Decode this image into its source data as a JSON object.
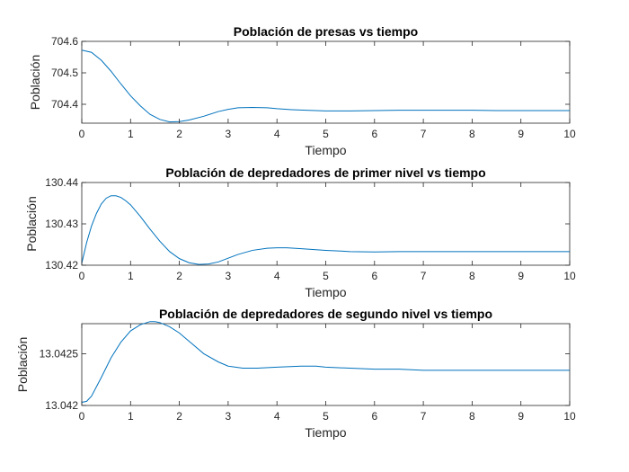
{
  "figure": {
    "background": "#ffffff",
    "line_color": "#0072BD",
    "axes_color": "#262626"
  },
  "chart_data": [
    {
      "type": "line",
      "title": "Población de presas vs tiempo",
      "xlabel": "Tiempo",
      "ylabel": "Población",
      "xlim": [
        0,
        10
      ],
      "ylim": [
        704.34,
        704.6
      ],
      "xticks": [
        "0",
        "1",
        "2",
        "3",
        "4",
        "5",
        "6",
        "7",
        "8",
        "9",
        "10"
      ],
      "yticks": [
        "704.4",
        "704.5",
        "704.6"
      ],
      "ytick_values": [
        704.4,
        704.5,
        704.6
      ],
      "grid": false,
      "series": [
        {
          "color": "#0072BD",
          "x": [
            0,
            0.2,
            0.4,
            0.6,
            0.8,
            1.0,
            1.2,
            1.4,
            1.6,
            1.8,
            2.0,
            2.2,
            2.5,
            2.8,
            3.0,
            3.2,
            3.5,
            3.8,
            4.0,
            4.3,
            4.6,
            5.0,
            5.5,
            6.0,
            6.5,
            7.0,
            7.5,
            8.0,
            8.5,
            9.0,
            9.5,
            10.0
          ],
          "y": [
            704.572,
            704.565,
            704.54,
            704.505,
            704.465,
            704.427,
            704.395,
            704.368,
            704.352,
            704.344,
            704.345,
            704.35,
            704.362,
            704.377,
            704.384,
            704.389,
            704.39,
            704.389,
            704.386,
            704.383,
            704.381,
            704.379,
            704.379,
            704.38,
            704.381,
            704.381,
            704.381,
            704.381,
            704.38,
            704.38,
            704.38,
            704.38
          ]
        }
      ]
    },
    {
      "type": "line",
      "title": "Población de depredadores de primer nivel vs tiempo",
      "xlabel": "Tiempo",
      "ylabel": "Población",
      "xlim": [
        0,
        10
      ],
      "ylim": [
        130.42,
        130.44
      ],
      "xticks": [
        "0",
        "1",
        "2",
        "3",
        "4",
        "5",
        "6",
        "7",
        "8",
        "9",
        "10"
      ],
      "yticks": [
        "130.42",
        "130.43",
        "130.44"
      ],
      "ytick_values": [
        130.42,
        130.43,
        130.44
      ],
      "grid": false,
      "series": [
        {
          "color": "#0072BD",
          "x": [
            0,
            0.1,
            0.2,
            0.3,
            0.4,
            0.5,
            0.6,
            0.7,
            0.8,
            0.9,
            1.0,
            1.2,
            1.4,
            1.6,
            1.8,
            2.0,
            2.2,
            2.4,
            2.6,
            2.8,
            3.0,
            3.2,
            3.5,
            3.8,
            4.0,
            4.2,
            4.5,
            5.0,
            5.5,
            6.0,
            6.5,
            7.0,
            8.0,
            9.0,
            10.0
          ],
          "y": [
            130.4205,
            130.4255,
            130.4295,
            130.4325,
            130.4348,
            130.4362,
            130.4368,
            130.4368,
            130.4364,
            130.4356,
            130.4346,
            130.4318,
            130.4287,
            130.4258,
            130.4233,
            130.4216,
            130.4206,
            130.4202,
            130.4203,
            130.4208,
            130.4217,
            130.4226,
            130.4236,
            130.4241,
            130.4242,
            130.4242,
            130.424,
            130.4236,
            130.4233,
            130.4232,
            130.4233,
            130.4233,
            130.4233,
            130.4233,
            130.4233
          ]
        }
      ]
    },
    {
      "type": "line",
      "title": "Población de depredadores de segundo nivel vs tiempo",
      "xlabel": "Tiempo",
      "ylabel": "Población",
      "xlim": [
        0,
        10
      ],
      "ylim": [
        13.042,
        13.04279
      ],
      "xticks": [
        "0",
        "1",
        "2",
        "3",
        "4",
        "5",
        "6",
        "7",
        "8",
        "9",
        "10"
      ],
      "yticks": [
        "13.042",
        "13.0425"
      ],
      "ytick_values": [
        13.042,
        13.0425
      ],
      "grid": false,
      "series": [
        {
          "color": "#0072BD",
          "x": [
            0,
            0.1,
            0.2,
            0.4,
            0.6,
            0.8,
            1.0,
            1.2,
            1.4,
            1.5,
            1.6,
            1.8,
            2.0,
            2.2,
            2.5,
            2.8,
            3.0,
            3.3,
            3.6,
            4.0,
            4.5,
            4.8,
            5.0,
            5.5,
            6.0,
            6.5,
            7.0,
            7.5,
            8.0,
            9.0,
            10.0
          ],
          "y": [
            13.04203,
            13.04204,
            13.04209,
            13.04227,
            13.04246,
            13.04261,
            13.04272,
            13.04278,
            13.04281,
            13.04281,
            13.0428,
            13.04276,
            13.0427,
            13.04262,
            13.0425,
            13.04242,
            13.04238,
            13.04236,
            13.04236,
            13.04237,
            13.04238,
            13.04238,
            13.04237,
            13.04236,
            13.04235,
            13.04235,
            13.04234,
            13.04234,
            13.04234,
            13.04234,
            13.04234
          ]
        }
      ]
    }
  ]
}
